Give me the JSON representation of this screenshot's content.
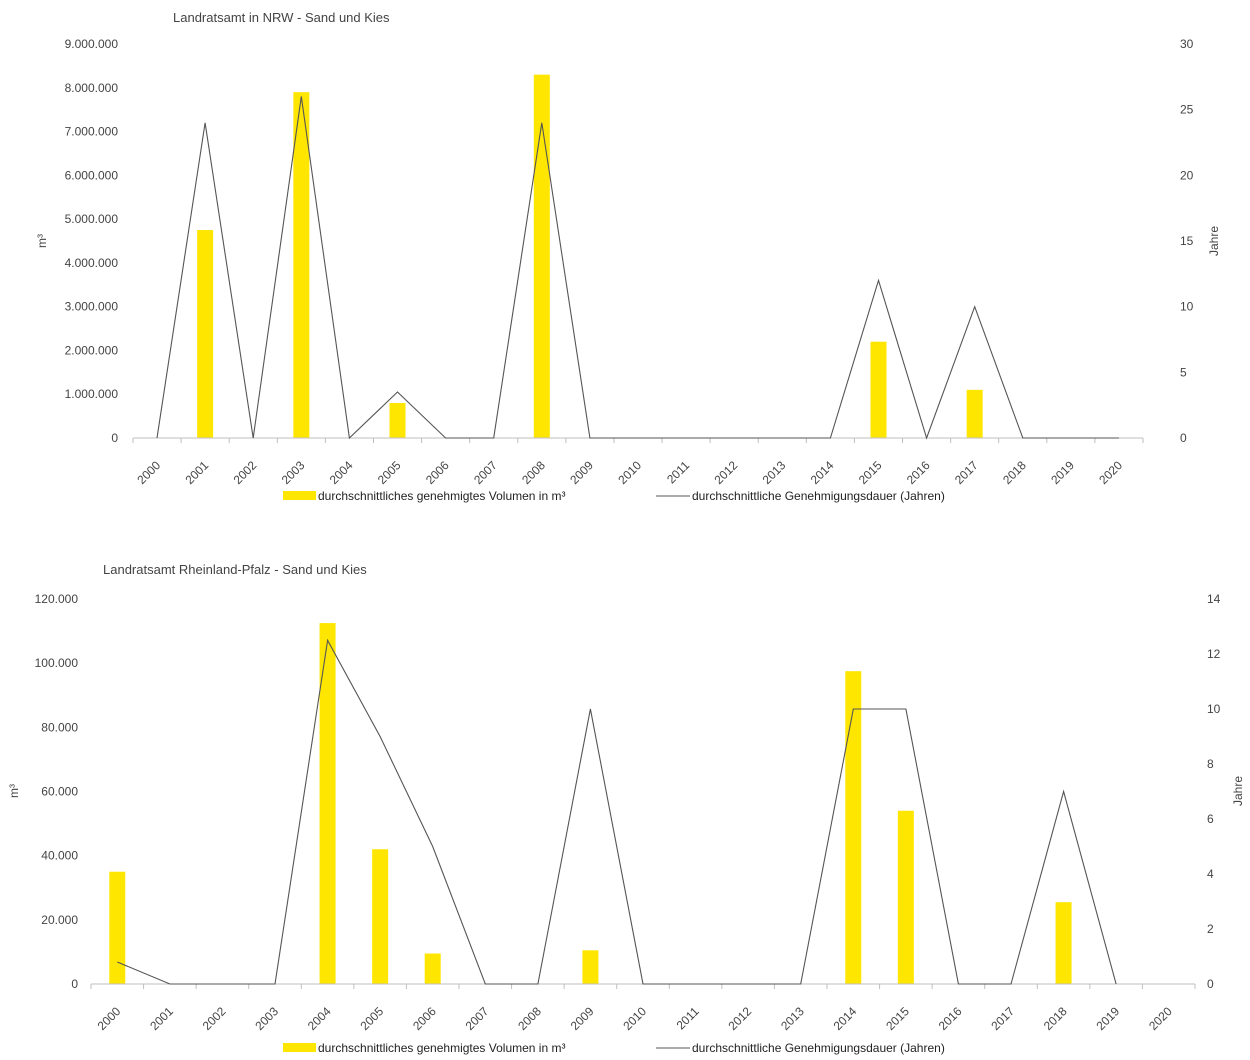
{
  "colors": {
    "bar": "#ffe600",
    "line": "#555555",
    "axis": "#bfbfbf"
  },
  "chart_data": [
    {
      "type": "bar",
      "title": "Landratsamt in NRW - Sand und Kies",
      "ylabel": "m³",
      "y2label": "Jahre",
      "categories": [
        "2000",
        "2001",
        "2002",
        "2003",
        "2004",
        "2005",
        "2006",
        "2007",
        "2008",
        "2009",
        "2010",
        "2011",
        "2012",
        "2013",
        "2014",
        "2015",
        "2016",
        "2017",
        "2018",
        "2019",
        "2020"
      ],
      "ylim": [
        0,
        9000000
      ],
      "y2lim": [
        0,
        30
      ],
      "yticks": [
        0,
        1000000,
        2000000,
        3000000,
        4000000,
        5000000,
        6000000,
        7000000,
        8000000,
        9000000
      ],
      "y2ticks": [
        0,
        5,
        10,
        15,
        20,
        25,
        30
      ],
      "ytick_labels": [
        "0",
        "1.000.000",
        "2.000.000",
        "3.000.000",
        "4.000.000",
        "5.000.000",
        "6.000.000",
        "7.000.000",
        "8.000.000",
        "9.000.000"
      ],
      "y2tick_labels": [
        "0",
        "5",
        "10",
        "15",
        "20",
        "25",
        "30"
      ],
      "series": [
        {
          "name": "durchschnittliches genehmigtes Volumen in m³",
          "type": "bar",
          "axis": "left",
          "values": [
            0,
            4750000,
            0,
            7900000,
            0,
            800000,
            0,
            0,
            8300000,
            0,
            0,
            0,
            0,
            0,
            0,
            2200000,
            0,
            1100000,
            0,
            0,
            0
          ]
        },
        {
          "name": "durchschnittliche Genehmigungsdauer (Jahren)",
          "type": "line",
          "axis": "right",
          "values": [
            0,
            24,
            0,
            26,
            0,
            3.5,
            0,
            0,
            24,
            0,
            0,
            0,
            0,
            0,
            0,
            12,
            0,
            10,
            0,
            0,
            0
          ]
        }
      ],
      "legend": "bottom"
    },
    {
      "type": "bar",
      "title": "Landratsamt Rheinland-Pfalz - Sand und Kies",
      "ylabel": "m³",
      "y2label": "Jahre",
      "categories": [
        "2000",
        "2001",
        "2002",
        "2003",
        "2004",
        "2005",
        "2006",
        "2007",
        "2008",
        "2009",
        "2010",
        "2011",
        "2012",
        "2013",
        "2014",
        "2015",
        "2016",
        "2017",
        "2018",
        "2019",
        "2020"
      ],
      "ylim": [
        0,
        120000
      ],
      "y2lim": [
        0,
        14
      ],
      "yticks": [
        0,
        20000,
        40000,
        60000,
        80000,
        100000,
        120000
      ],
      "y2ticks": [
        0,
        2,
        4,
        6,
        8,
        10,
        12,
        14
      ],
      "ytick_labels": [
        "0",
        "20.000",
        "40.000",
        "60.000",
        "80.000",
        "100.000",
        "120.000"
      ],
      "y2tick_labels": [
        "0",
        "2",
        "4",
        "6",
        "8",
        "10",
        "12",
        "14"
      ],
      "series": [
        {
          "name": "durchschnittliches genehmigtes Volumen in m³",
          "type": "bar",
          "axis": "left",
          "values": [
            35000,
            0,
            0,
            0,
            112500,
            42000,
            9500,
            0,
            0,
            10500,
            0,
            0,
            0,
            0,
            97500,
            54000,
            0,
            0,
            25500,
            0,
            0
          ]
        },
        {
          "name": "durchschnittliche Genehmigungsdauer (Jahren)",
          "type": "line",
          "axis": "right",
          "values": [
            0.8,
            0,
            0,
            0,
            12.5,
            9,
            5,
            0,
            0,
            10,
            0,
            0,
            0,
            0,
            10,
            10,
            0,
            0,
            7,
            0,
            null
          ]
        }
      ],
      "legend": "bottom"
    }
  ]
}
